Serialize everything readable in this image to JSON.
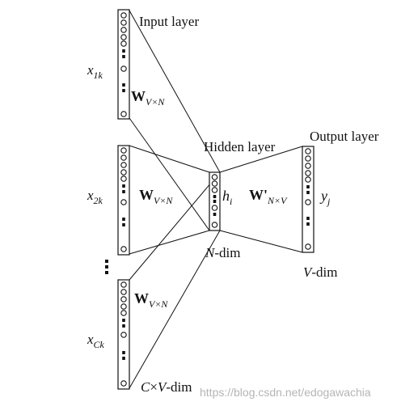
{
  "labels": {
    "input_layer": "Input layer",
    "hidden_layer": "Hidden layer",
    "output_layer": "Output layer",
    "x_first": {
      "main": "x",
      "sub": "1k"
    },
    "x_second": {
      "main": "x",
      "sub": "2k"
    },
    "x_last": {
      "main": "x",
      "sub": "Ck"
    },
    "h": {
      "main": "h",
      "sub": "i"
    },
    "y": {
      "main": "y",
      "sub": "j"
    },
    "weight_in": {
      "bold": "W",
      "sub": "V×N"
    },
    "weight_out": {
      "bold": "W'",
      "sub": "N×V"
    },
    "n_dim": {
      "italic": "N",
      "rest": "-dim"
    },
    "v_dim": {
      "italic": "V",
      "rest": "-dim"
    },
    "cv_dim": {
      "italic1": "C",
      "op": "×",
      "italic2": "V",
      "rest": "-dim"
    }
  },
  "watermark": "https://blog.csdn.net/edogawachia",
  "colors": {
    "ink": "#111111",
    "watermark": "#b5b5b5",
    "background": "#ffffff"
  }
}
